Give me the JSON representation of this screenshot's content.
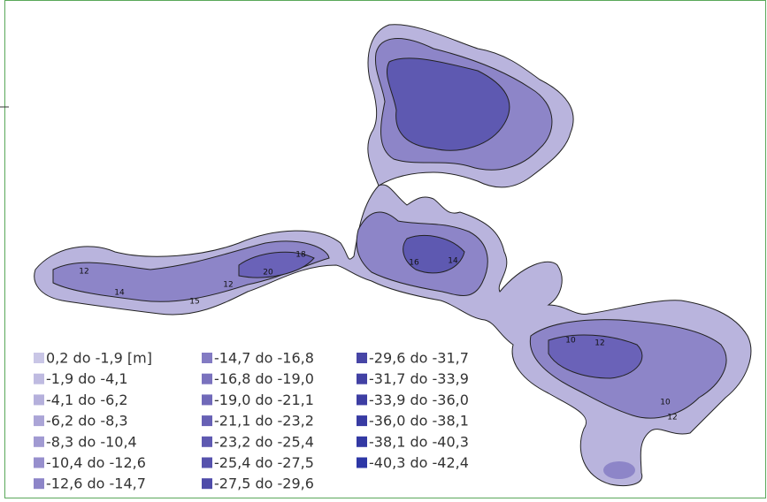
{
  "legend": [
    {
      "label": "0,2 do -1,9 [m]",
      "color": "#c9c6e6"
    },
    {
      "label": "-1,9 do -4,1",
      "color": "#bfbbe1"
    },
    {
      "label": "-4,1 do -6,2",
      "color": "#b5b0dc"
    },
    {
      "label": "-6,2 do -8,3",
      "color": "#aba5d7"
    },
    {
      "label": "-8,3 do -10,4",
      "color": "#a19ad2"
    },
    {
      "label": "-10,4 do -12,6",
      "color": "#978fcd"
    },
    {
      "label": "-12,6 do -14,7",
      "color": "#8d85c8"
    },
    {
      "label": "-14,7 do -16,8",
      "color": "#837bc3"
    },
    {
      "label": "-16,8 do -19,0",
      "color": "#7a72be"
    },
    {
      "label": "-19,0 do -21,1",
      "color": "#7069b9"
    },
    {
      "label": "-21,1 do -23,2",
      "color": "#6761b5"
    },
    {
      "label": "-23,2 do -25,4",
      "color": "#5e59b1"
    },
    {
      "label": "-25,4 do -27,5",
      "color": "#5652ad"
    },
    {
      "label": "-27,5 do -29,6",
      "color": "#4e4ba9"
    },
    {
      "label": "-29,6 do -31,7",
      "color": "#4745a6"
    },
    {
      "label": "-31,7 do -33,9",
      "color": "#4241a4"
    },
    {
      "label": "-33,9 do -36,0",
      "color": "#3d3ea3"
    },
    {
      "label": "-36,0 do -38,1",
      "color": "#383ba3"
    },
    {
      "label": "-38,1 do -40,3",
      "color": "#3339a4"
    },
    {
      "label": "-40,3 do -42,4",
      "color": "#2d37a6"
    }
  ],
  "depth_labels": [
    "12",
    "14",
    "15",
    "12",
    "20",
    "18",
    "16",
    "14",
    "10",
    "12",
    "10",
    "12"
  ]
}
